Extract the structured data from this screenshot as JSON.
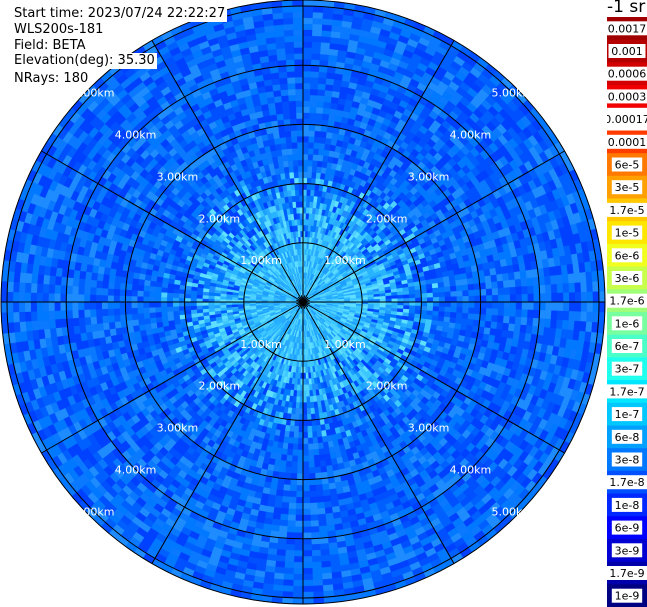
{
  "info": {
    "start_time": "Start time: 2023/07/24 22:22:27",
    "instrument": "WLS200s-181",
    "field": "Field: BETA",
    "elevation": "Elevation(deg): 35.30",
    "nrays": "NRays: 180"
  },
  "colorbar_title": "-1 sr",
  "chart_data": {
    "type": "heatmap",
    "projection": "polar (PPI scan)",
    "field": "BETA",
    "elevation_deg": 35.3,
    "n_rays": 180,
    "range_rings_km": [
      1,
      2,
      3,
      4,
      5
    ],
    "ring_labels": [
      "1.00km",
      "2.00km",
      "3.00km",
      "4.00km",
      "5.00km"
    ],
    "spoke_angles_deg": [
      0,
      30,
      60,
      90,
      120,
      150,
      180,
      210,
      240,
      270,
      300,
      330
    ],
    "max_range_km": 5.2,
    "colorbar": {
      "labels": [
        "0.0017",
        "0.001",
        "0.0006",
        "0.0003",
        "0.00017",
        "0.0001",
        "6e-5",
        "3e-5",
        "1.7e-5",
        "1e-5",
        "6e-6",
        "3e-6",
        "1.7e-6",
        "1e-6",
        "6e-7",
        "3e-7",
        "1.7e-7",
        "1e-7",
        "6e-8",
        "3e-8",
        "1.7e-8",
        "1e-8",
        "6e-9",
        "3e-9",
        "1.7e-9",
        "1e-9"
      ],
      "colors": [
        "#a00000",
        "#b40000",
        "#d20000",
        "#f00000",
        "#ffffff",
        "#ff3c00",
        "#ff7800",
        "#ffa000",
        "#ffc800",
        "#ffe600",
        "#f0ff1e",
        "#c8ff4b",
        "#a0ff78",
        "#78ffa0",
        "#4bffc8",
        "#1effee",
        "#00e6ff",
        "#00c8ff",
        "#00a0ff",
        "#0078ff",
        "#0050ff",
        "#0028ff",
        "#0000ff",
        "#0000d2",
        "#0000aa",
        "#000082"
      ]
    },
    "dominant_values": {
      "inner_km_0_2": "1.7e-7 to 1e-7 (light cyan/sky blue)",
      "outer_km_2_5": "6e-8 to 1e-8 (blue)"
    }
  }
}
